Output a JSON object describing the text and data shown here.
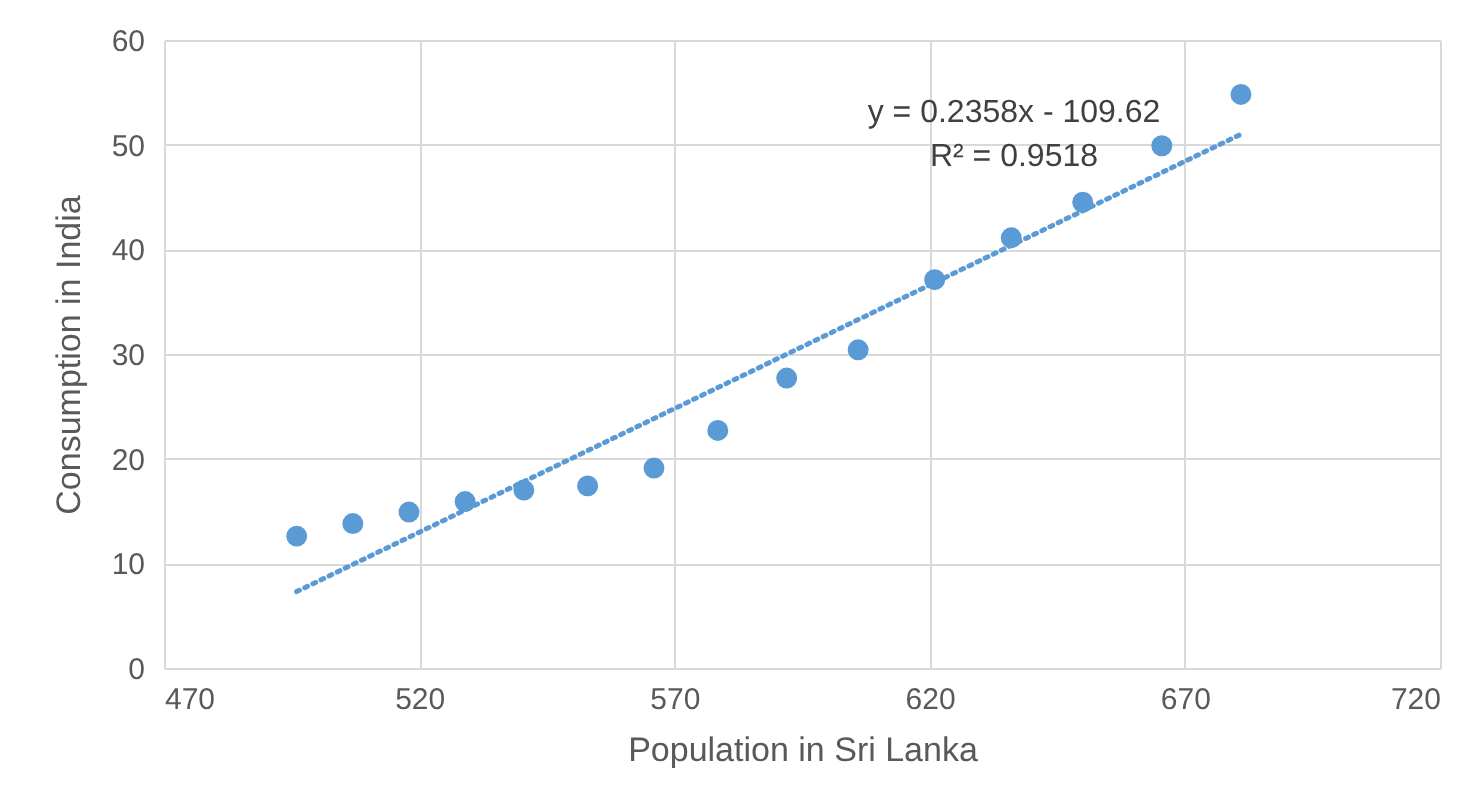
{
  "chart_data": {
    "type": "scatter",
    "xlabel": "Population in Sri Lanka",
    "ylabel": "Consumption in India",
    "xlim": [
      470,
      720
    ],
    "xticks": [
      470,
      520,
      570,
      620,
      670,
      720
    ],
    "ylim": [
      0,
      60
    ],
    "yticks": [
      0,
      10,
      20,
      30,
      40,
      50,
      60
    ],
    "grid": true,
    "marker": "circle",
    "series": [
      {
        "color": "#5b9bd5",
        "x": [
          496,
          507,
          518,
          529,
          540.5,
          553,
          566,
          578.5,
          592,
          606,
          621,
          636,
          650,
          665.5,
          681
        ],
        "values": [
          12.6,
          13.8,
          14.9,
          15.9,
          17.0,
          17.4,
          19.1,
          22.7,
          27.7,
          30.4,
          37.1,
          41.1,
          44.5,
          49.9,
          54.8
        ]
      },
      {
        "type": "line",
        "color": "#5b9bd5",
        "line_style": "dotted",
        "marker": "none",
        "x": [
          496,
          681
        ],
        "values": [
          7.3,
          51.0
        ]
      }
    ],
    "annotations": [
      "y = 0.2358x - 109.62",
      "R² = 0.9518"
    ]
  }
}
